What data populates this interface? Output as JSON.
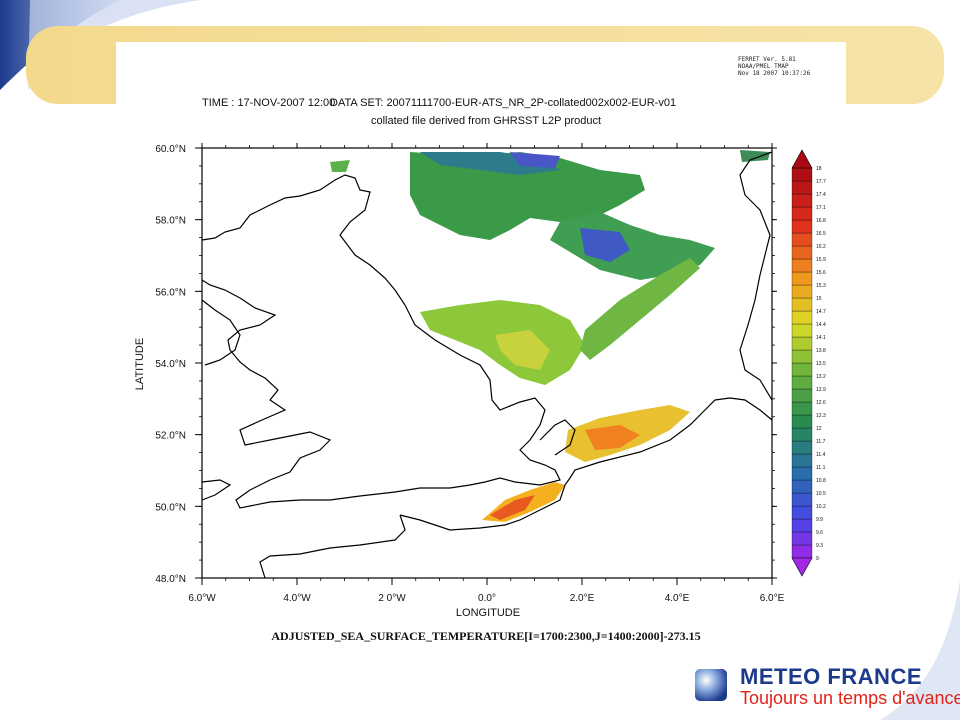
{
  "ferret": {
    "line1": "FERRET Ver. 5.81",
    "line2": "NOAA/PMEL TMAP",
    "line3": "Nov 18 2007 10:37:26"
  },
  "header": {
    "time_label": "TIME : 17-NOV-2007 12:00",
    "dataset_label": "DATA SET: 20071111700-EUR-ATS_NR_2P-collated002x002-EUR-v01",
    "subtitle": "collated file derived from GHRSST L2P product"
  },
  "footer": {
    "variable_label": "ADJUSTED_SEA_SURFACE_TEMPERATURE[I=1700:2300,J=1400:2000]-273.15"
  },
  "brand": {
    "name": "METEO FRANCE",
    "slogan": "Toujours un temps d'avance",
    "accent_color": "#e2231a",
    "primary_color": "#1b3a8c"
  },
  "chart_data": {
    "type": "heatmap",
    "title": "DATA SET: 20071111700-EUR-ATS_NR_2P-collated002x002-EUR-v01",
    "xlabel": "LONGITUDE",
    "ylabel": "LATITUDE",
    "xlim": [
      -6,
      6
    ],
    "ylim": [
      48,
      60
    ],
    "x_ticks": [
      "6.0°W",
      "4.0°W",
      "2 0°W",
      "0.0°",
      "2.0°E",
      "4.0°E",
      "6.0°E"
    ],
    "y_ticks": [
      "48.0°N",
      "50.0°N",
      "52.0°N",
      "54.0°N",
      "56.0°N",
      "58.0°N",
      "60.0°N"
    ],
    "colorbar_labels": [
      "9",
      "9.3",
      "9.6",
      "9.9",
      "10.2",
      "10.5",
      "10.8",
      "11.1",
      "11.4",
      "11.7",
      "12",
      "12.3",
      "12.6",
      "12.9",
      "13.2",
      "13.5",
      "13.8",
      "14.1",
      "14.4",
      "14.7",
      "15",
      "15.3",
      "15.6",
      "15.9",
      "16.2",
      "16.5",
      "16.8",
      "17.1",
      "17.4",
      "17.7",
      "18"
    ],
    "colorbar_range": [
      9,
      18
    ],
    "grid": false
  }
}
